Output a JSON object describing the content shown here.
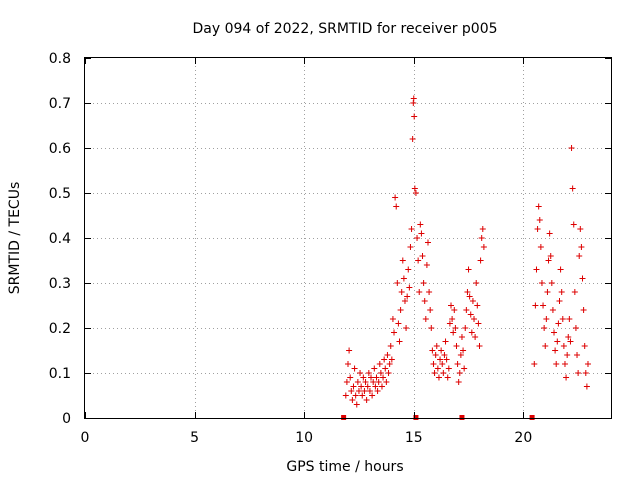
{
  "chart_data": {
    "type": "scatter",
    "title": "Day 094 of 2022, SRMTID for receiver p005",
    "xlabel": "GPS time / hours",
    "ylabel": "SRMTID / TECUs",
    "xlim": [
      0,
      24
    ],
    "ylim": [
      0,
      0.8
    ],
    "x_ticks": [
      0,
      5,
      10,
      15,
      20
    ],
    "x_tick_labels": [
      "0",
      "5",
      "10",
      "15",
      "20"
    ],
    "y_ticks": [
      0,
      0.1,
      0.2,
      0.3,
      0.4,
      0.5,
      0.6,
      0.7,
      0.8
    ],
    "y_tick_labels": [
      "0",
      "0.1",
      "0.2",
      "0.3",
      "0.4",
      "0.5",
      "0.6",
      "0.7",
      "0.8"
    ],
    "grid": true,
    "marker": "plus",
    "color": "#dd0000",
    "baseline_markers_x": [
      11.8,
      15.1,
      17.2,
      20.4
    ],
    "series": [
      {
        "name": "SRMTID",
        "points": [
          [
            11.9,
            0.05
          ],
          [
            11.95,
            0.08
          ],
          [
            12.0,
            0.12
          ],
          [
            12.05,
            0.15
          ],
          [
            12.1,
            0.09
          ],
          [
            12.15,
            0.06
          ],
          [
            12.2,
            0.04
          ],
          [
            12.25,
            0.07
          ],
          [
            12.3,
            0.11
          ],
          [
            12.35,
            0.05
          ],
          [
            12.4,
            0.03
          ],
          [
            12.45,
            0.08
          ],
          [
            12.5,
            0.06
          ],
          [
            12.55,
            0.1
          ],
          [
            12.6,
            0.07
          ],
          [
            12.65,
            0.05
          ],
          [
            12.7,
            0.09
          ],
          [
            12.75,
            0.06
          ],
          [
            12.8,
            0.08
          ],
          [
            12.85,
            0.04
          ],
          [
            12.9,
            0.07
          ],
          [
            12.95,
            0.1
          ],
          [
            13.0,
            0.06
          ],
          [
            13.05,
            0.09
          ],
          [
            13.1,
            0.05
          ],
          [
            13.15,
            0.08
          ],
          [
            13.2,
            0.11
          ],
          [
            13.25,
            0.07
          ],
          [
            13.3,
            0.09
          ],
          [
            13.35,
            0.06
          ],
          [
            13.4,
            0.08
          ],
          [
            13.45,
            0.12
          ],
          [
            13.5,
            0.1
          ],
          [
            13.55,
            0.07
          ],
          [
            13.6,
            0.09
          ],
          [
            13.65,
            0.13
          ],
          [
            13.7,
            0.11
          ],
          [
            13.75,
            0.08
          ],
          [
            13.8,
            0.14
          ],
          [
            13.85,
            0.1
          ],
          [
            13.9,
            0.12
          ],
          [
            13.95,
            0.16
          ],
          [
            14.0,
            0.13
          ],
          [
            14.05,
            0.22
          ],
          [
            14.1,
            0.19
          ],
          [
            14.15,
            0.49
          ],
          [
            14.2,
            0.47
          ],
          [
            14.25,
            0.3
          ],
          [
            14.3,
            0.21
          ],
          [
            14.35,
            0.17
          ],
          [
            14.4,
            0.24
          ],
          [
            14.45,
            0.28
          ],
          [
            14.5,
            0.35
          ],
          [
            14.55,
            0.31
          ],
          [
            14.6,
            0.26
          ],
          [
            14.65,
            0.2
          ],
          [
            14.7,
            0.27
          ],
          [
            14.75,
            0.33
          ],
          [
            14.8,
            0.29
          ],
          [
            14.85,
            0.38
          ],
          [
            14.9,
            0.42
          ],
          [
            14.95,
            0.62
          ],
          [
            14.98,
            0.7
          ],
          [
            15.0,
            0.71
          ],
          [
            15.02,
            0.67
          ],
          [
            15.05,
            0.51
          ],
          [
            15.1,
            0.5
          ],
          [
            15.15,
            0.4
          ],
          [
            15.2,
            0.35
          ],
          [
            15.25,
            0.28
          ],
          [
            15.3,
            0.43
          ],
          [
            15.35,
            0.41
          ],
          [
            15.4,
            0.36
          ],
          [
            15.45,
            0.3
          ],
          [
            15.5,
            0.26
          ],
          [
            15.55,
            0.22
          ],
          [
            15.6,
            0.34
          ],
          [
            15.65,
            0.39
          ],
          [
            15.7,
            0.28
          ],
          [
            15.75,
            0.24
          ],
          [
            15.8,
            0.2
          ],
          [
            15.85,
            0.15
          ],
          [
            15.9,
            0.12
          ],
          [
            15.95,
            0.1
          ],
          [
            16.0,
            0.14
          ],
          [
            16.05,
            0.16
          ],
          [
            16.1,
            0.11
          ],
          [
            16.15,
            0.09
          ],
          [
            16.2,
            0.13
          ],
          [
            16.25,
            0.15
          ],
          [
            16.3,
            0.12
          ],
          [
            16.35,
            0.1
          ],
          [
            16.4,
            0.14
          ],
          [
            16.45,
            0.17
          ],
          [
            16.5,
            0.13
          ],
          [
            16.55,
            0.09
          ],
          [
            16.6,
            0.11
          ],
          [
            16.65,
            0.21
          ],
          [
            16.7,
            0.25
          ],
          [
            16.75,
            0.22
          ],
          [
            16.8,
            0.19
          ],
          [
            16.85,
            0.24
          ],
          [
            16.9,
            0.2
          ],
          [
            16.95,
            0.16
          ],
          [
            17.0,
            0.12
          ],
          [
            17.05,
            0.08
          ],
          [
            17.1,
            0.1
          ],
          [
            17.15,
            0.14
          ],
          [
            17.2,
            0.18
          ],
          [
            17.25,
            0.15
          ],
          [
            17.3,
            0.11
          ],
          [
            17.35,
            0.2
          ],
          [
            17.4,
            0.24
          ],
          [
            17.45,
            0.28
          ],
          [
            17.5,
            0.33
          ],
          [
            17.55,
            0.27
          ],
          [
            17.6,
            0.23
          ],
          [
            17.65,
            0.19
          ],
          [
            17.7,
            0.26
          ],
          [
            17.75,
            0.22
          ],
          [
            17.8,
            0.18
          ],
          [
            17.85,
            0.3
          ],
          [
            17.9,
            0.25
          ],
          [
            17.95,
            0.21
          ],
          [
            18.0,
            0.16
          ],
          [
            18.05,
            0.35
          ],
          [
            18.1,
            0.4
          ],
          [
            18.15,
            0.42
          ],
          [
            18.2,
            0.38
          ],
          [
            20.5,
            0.12
          ],
          [
            20.55,
            0.25
          ],
          [
            20.6,
            0.33
          ],
          [
            20.65,
            0.42
          ],
          [
            20.7,
            0.47
          ],
          [
            20.75,
            0.44
          ],
          [
            20.8,
            0.38
          ],
          [
            20.85,
            0.3
          ],
          [
            20.9,
            0.25
          ],
          [
            20.95,
            0.2
          ],
          [
            21.0,
            0.16
          ],
          [
            21.05,
            0.22
          ],
          [
            21.1,
            0.28
          ],
          [
            21.15,
            0.35
          ],
          [
            21.2,
            0.41
          ],
          [
            21.25,
            0.36
          ],
          [
            21.3,
            0.3
          ],
          [
            21.35,
            0.24
          ],
          [
            21.4,
            0.19
          ],
          [
            21.45,
            0.15
          ],
          [
            21.5,
            0.12
          ],
          [
            21.55,
            0.17
          ],
          [
            21.6,
            0.21
          ],
          [
            21.65,
            0.26
          ],
          [
            21.7,
            0.33
          ],
          [
            21.75,
            0.28
          ],
          [
            21.8,
            0.22
          ],
          [
            21.85,
            0.16
          ],
          [
            21.9,
            0.12
          ],
          [
            21.95,
            0.09
          ],
          [
            22.0,
            0.14
          ],
          [
            22.05,
            0.18
          ],
          [
            22.1,
            0.22
          ],
          [
            22.15,
            0.17
          ],
          [
            22.2,
            0.6
          ],
          [
            22.25,
            0.51
          ],
          [
            22.3,
            0.43
          ],
          [
            22.35,
            0.28
          ],
          [
            22.4,
            0.2
          ],
          [
            22.45,
            0.14
          ],
          [
            22.5,
            0.1
          ],
          [
            22.55,
            0.36
          ],
          [
            22.6,
            0.42
          ],
          [
            22.65,
            0.38
          ],
          [
            22.7,
            0.31
          ],
          [
            22.75,
            0.24
          ],
          [
            22.8,
            0.16
          ],
          [
            22.85,
            0.1
          ],
          [
            22.9,
            0.07
          ],
          [
            22.95,
            0.12
          ]
        ]
      }
    ]
  }
}
